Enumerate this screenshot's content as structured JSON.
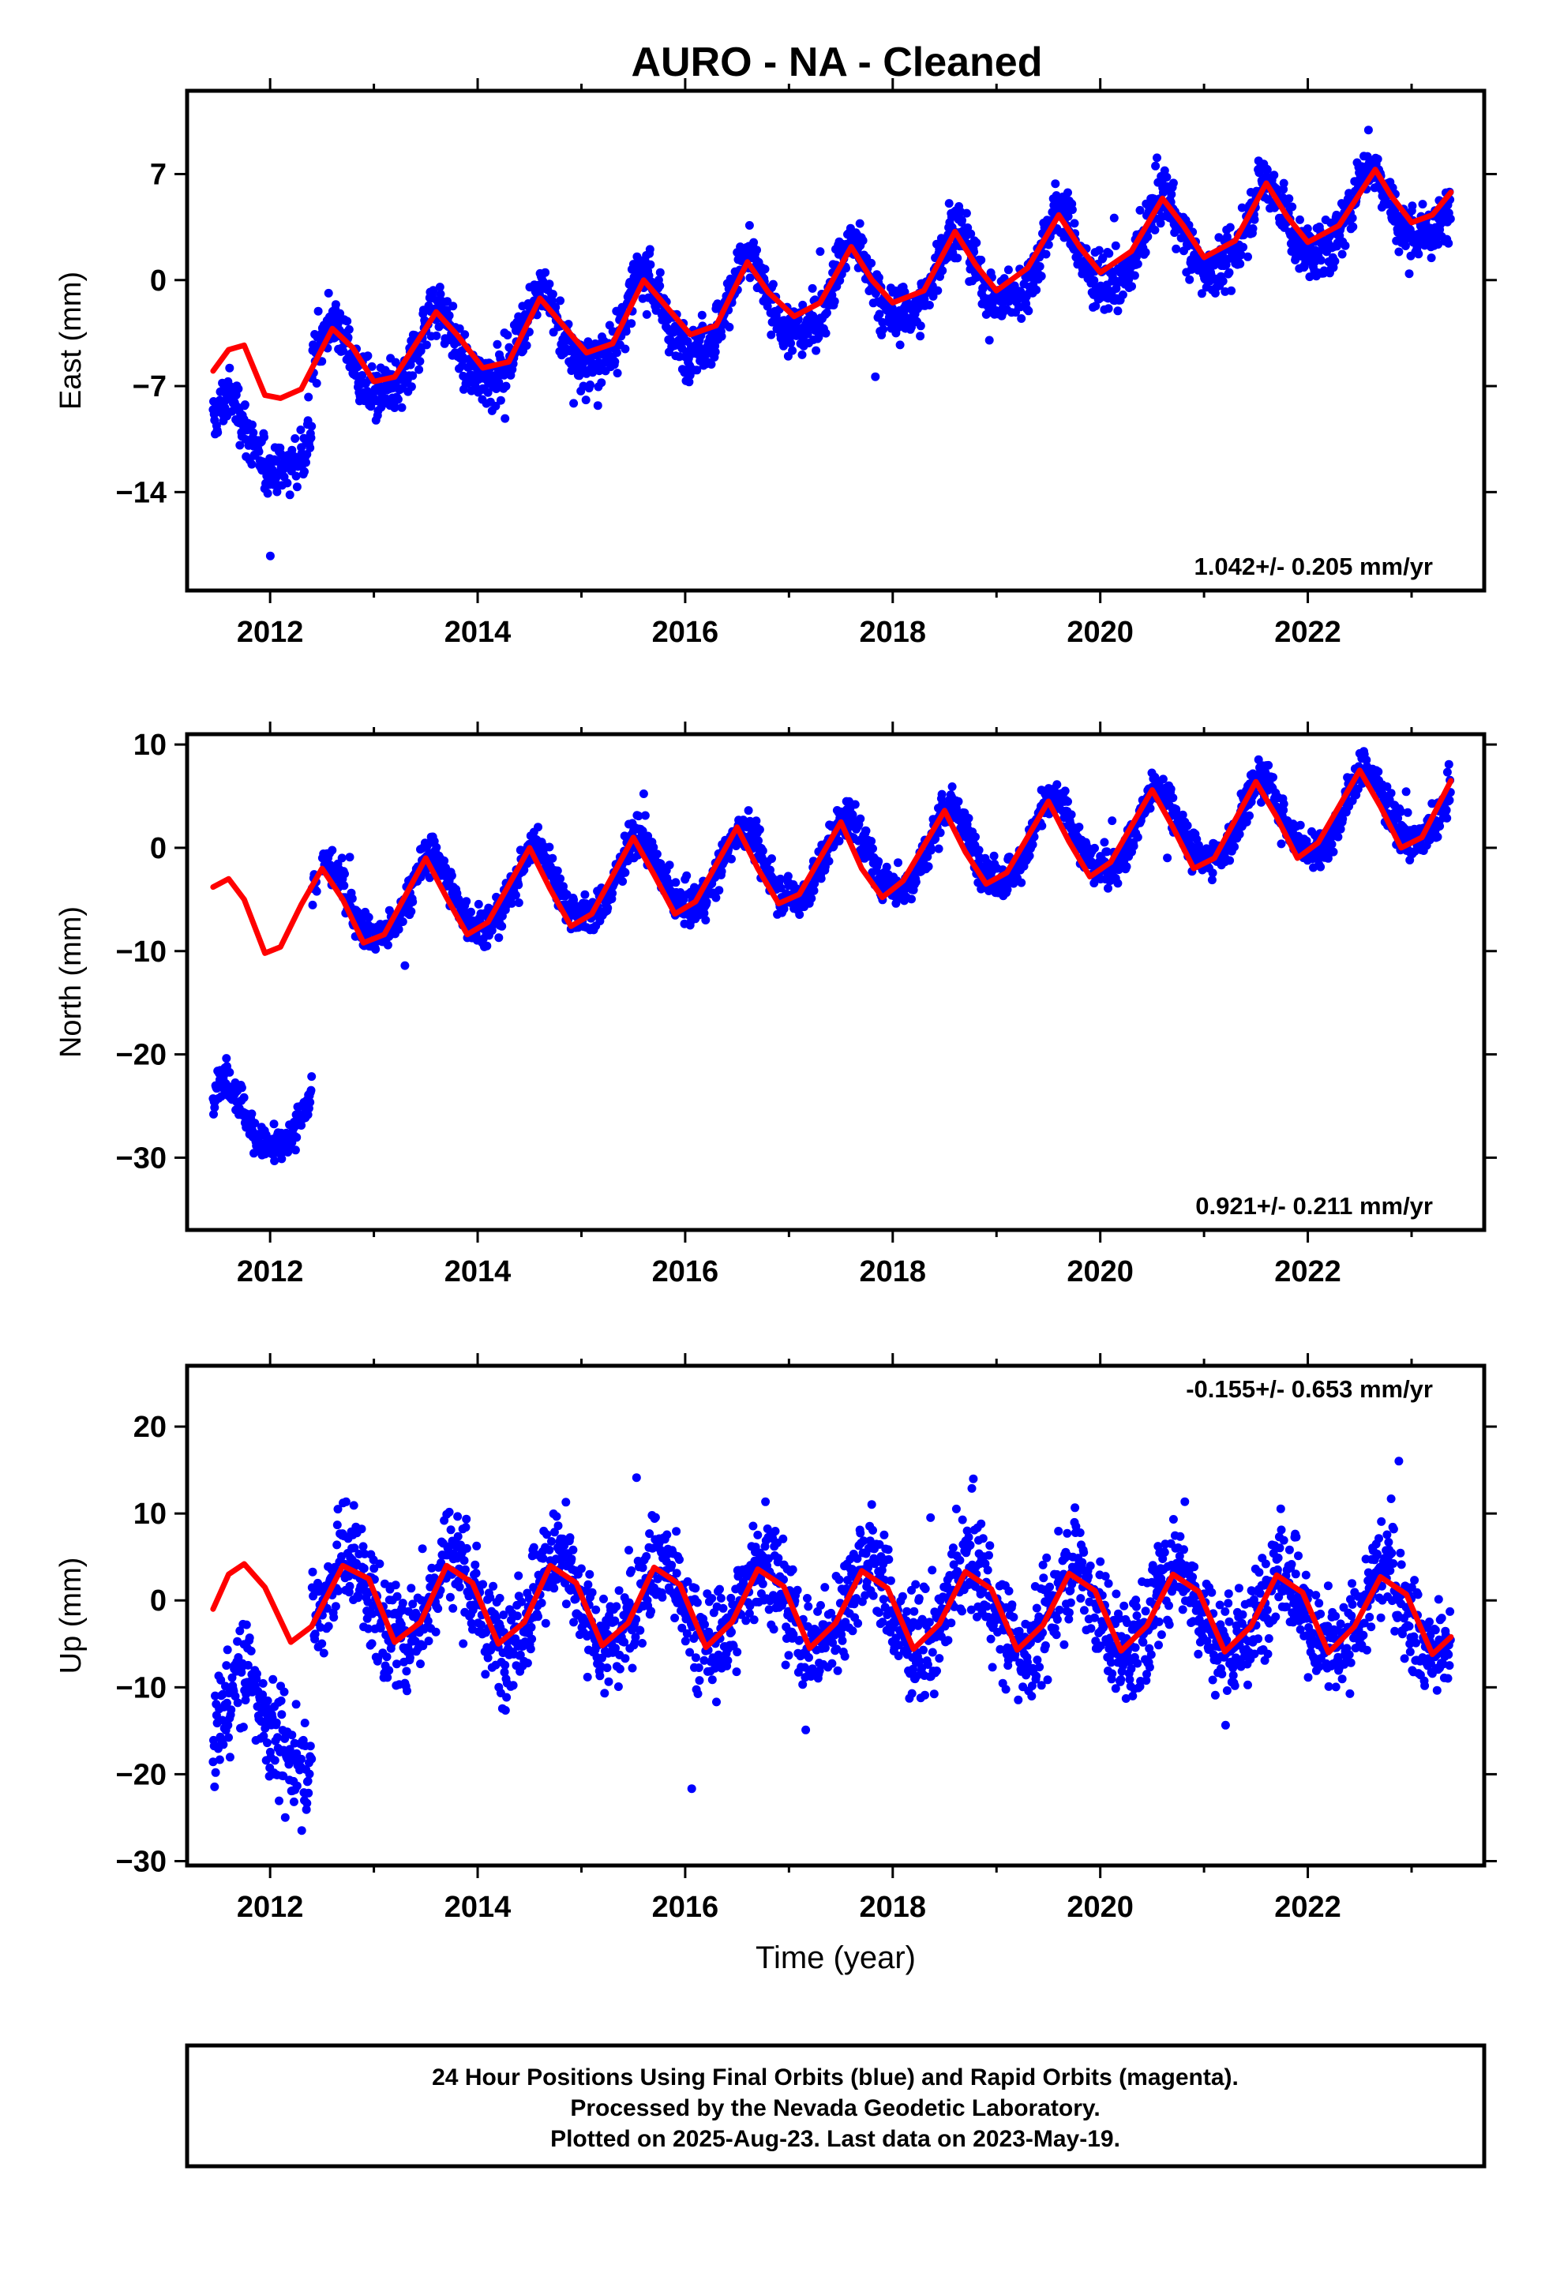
{
  "title": "AURO  - NA - Cleaned",
  "chart_data": [
    {
      "type": "scatter",
      "ylabel": "East (mm)",
      "xlabel": "",
      "xlim": [
        2011.2,
        2023.7
      ],
      "ylim": [
        -20.5,
        12.5
      ],
      "xticks": [
        2012,
        2014,
        2016,
        2018,
        2020,
        2022
      ],
      "yticks": [
        7,
        0,
        -7,
        -14
      ],
      "ytick_labels": [
        "7",
        "0",
        "−7",
        "−14"
      ],
      "rate_text": "1.042+/- 0.205 mm/yr",
      "rate_position": "bottom-right",
      "data_range": [
        2011.45,
        2023.38
      ],
      "series": [
        {
          "name": "Final Orbits (blue)",
          "color": "#0000ff",
          "style": "points",
          "model": {
            "offset": -10.5,
            "offset_after_2012": -6.6,
            "slope": 1.042,
            "annual_amp": 2.6,
            "annual_peak": 0.6,
            "semi_amp": 0.6,
            "noise": 1.25
          }
        },
        {
          "name": "model fit",
          "color": "#ff0000",
          "style": "line",
          "knots": [
            [
              2011.45,
              -6
            ],
            [
              2011.6,
              -4.6
            ],
            [
              2011.75,
              -4.3
            ],
            [
              2011.95,
              -7.6
            ],
            [
              2012.1,
              -7.8
            ],
            [
              2012.3,
              -7.2
            ],
            [
              2012.6,
              -3.2
            ],
            [
              2012.8,
              -4.5
            ],
            [
              2013.0,
              -6.7
            ],
            [
              2013.2,
              -6.4
            ],
            [
              2013.6,
              -2.1
            ],
            [
              2013.8,
              -3.6
            ],
            [
              2014.05,
              -5.8
            ],
            [
              2014.3,
              -5.4
            ],
            [
              2014.6,
              -1.2
            ],
            [
              2014.8,
              -2.8
            ],
            [
              2015.05,
              -4.8
            ],
            [
              2015.3,
              -4.2
            ],
            [
              2015.6,
              0
            ],
            [
              2015.8,
              -1.6
            ],
            [
              2016.05,
              -3.6
            ],
            [
              2016.3,
              -3.0
            ],
            [
              2016.6,
              1.2
            ],
            [
              2016.8,
              -0.8
            ],
            [
              2017.05,
              -2.4
            ],
            [
              2017.3,
              -1.5
            ],
            [
              2017.6,
              2.2
            ],
            [
              2017.8,
              0
            ],
            [
              2018.0,
              -1.5
            ],
            [
              2018.3,
              -0.7
            ],
            [
              2018.6,
              3.2
            ],
            [
              2018.8,
              1.0
            ],
            [
              2019.0,
              -0.7
            ],
            [
              2019.3,
              0.8
            ],
            [
              2019.6,
              4.3
            ],
            [
              2019.8,
              2.2
            ],
            [
              2020.0,
              0.5
            ],
            [
              2020.3,
              1.9
            ],
            [
              2020.6,
              5.4
            ],
            [
              2020.8,
              3.6
            ],
            [
              2021.0,
              1.5
            ],
            [
              2021.3,
              2.6
            ],
            [
              2021.6,
              6.4
            ],
            [
              2021.8,
              4.2
            ],
            [
              2022.0,
              2.5
            ],
            [
              2022.3,
              3.6
            ],
            [
              2022.65,
              7.3
            ],
            [
              2022.8,
              5.6
            ],
            [
              2023.0,
              3.8
            ],
            [
              2023.2,
              4.3
            ],
            [
              2023.38,
              5.8
            ]
          ]
        }
      ]
    },
    {
      "type": "scatter",
      "ylabel": "North (mm)",
      "xlabel": "",
      "xlim": [
        2011.2,
        2023.7
      ],
      "ylim": [
        -37,
        11
      ],
      "xticks": [
        2012,
        2014,
        2016,
        2018,
        2020,
        2022
      ],
      "yticks": [
        10,
        0,
        -10,
        -20,
        -30
      ],
      "ytick_labels": [
        "10",
        "0",
        "−10",
        "−20",
        "−30"
      ],
      "rate_text": "0.921+/- 0.211 mm/yr",
      "rate_position": "bottom-right",
      "data_range": [
        2011.45,
        2023.38
      ],
      "series": [
        {
          "name": "Final Orbits (blue)",
          "color": "#0000ff",
          "style": "points",
          "model": {
            "offset": -26.0,
            "offset_after_2012": -6.3,
            "slope": 0.921,
            "annual_amp": 3.6,
            "annual_peak": 0.55,
            "semi_amp": 0.5,
            "noise": 1.3
          }
        },
        {
          "name": "model fit",
          "color": "#ff0000",
          "style": "line",
          "knots": [
            [
              2011.45,
              -3.8
            ],
            [
              2011.6,
              -3.0
            ],
            [
              2011.75,
              -5.0
            ],
            [
              2011.95,
              -10.2
            ],
            [
              2012.1,
              -9.6
            ],
            [
              2012.3,
              -5.5
            ],
            [
              2012.5,
              -2.0
            ],
            [
              2012.7,
              -5.0
            ],
            [
              2012.9,
              -9.2
            ],
            [
              2013.1,
              -8.4
            ],
            [
              2013.5,
              -1.0
            ],
            [
              2013.7,
              -4.8
            ],
            [
              2013.9,
              -8.4
            ],
            [
              2014.1,
              -7.2
            ],
            [
              2014.5,
              0
            ],
            [
              2014.7,
              -4.0
            ],
            [
              2014.9,
              -7.6
            ],
            [
              2015.1,
              -6.4
            ],
            [
              2015.5,
              1.0
            ],
            [
              2015.7,
              -2.6
            ],
            [
              2015.9,
              -6.4
            ],
            [
              2016.1,
              -5.2
            ],
            [
              2016.5,
              2.0
            ],
            [
              2016.7,
              -2.0
            ],
            [
              2016.9,
              -5.4
            ],
            [
              2017.1,
              -4.5
            ],
            [
              2017.5,
              2.5
            ],
            [
              2017.7,
              -2.0
            ],
            [
              2017.9,
              -4.8
            ],
            [
              2018.1,
              -3.2
            ],
            [
              2018.5,
              3.6
            ],
            [
              2018.7,
              -0.4
            ],
            [
              2018.9,
              -3.5
            ],
            [
              2019.1,
              -2.4
            ],
            [
              2019.5,
              4.5
            ],
            [
              2019.7,
              0.6
            ],
            [
              2019.9,
              -2.8
            ],
            [
              2020.1,
              -1.4
            ],
            [
              2020.5,
              5.6
            ],
            [
              2020.7,
              2.0
            ],
            [
              2020.9,
              -2.0
            ],
            [
              2021.1,
              -1.0
            ],
            [
              2021.5,
              6.4
            ],
            [
              2021.7,
              3.0
            ],
            [
              2021.9,
              -1.0
            ],
            [
              2022.1,
              0.5
            ],
            [
              2022.5,
              7.5
            ],
            [
              2022.7,
              4.0
            ],
            [
              2022.9,
              0
            ],
            [
              2023.1,
              1.0
            ],
            [
              2023.38,
              6.5
            ]
          ]
        }
      ]
    },
    {
      "type": "scatter",
      "ylabel": "Up (mm)",
      "xlabel": "Time (year)",
      "xlim": [
        2011.2,
        2023.7
      ],
      "ylim": [
        -30.5,
        27
      ],
      "xticks": [
        2012,
        2014,
        2016,
        2018,
        2020,
        2022
      ],
      "yticks": [
        20,
        10,
        0,
        -10,
        -20,
        -30
      ],
      "ytick_labels": [
        "20",
        "10",
        "0",
        "−10",
        "−20",
        "−30"
      ],
      "rate_text": "-0.155+/- 0.653 mm/yr",
      "rate_position": "top-right",
      "data_range": [
        2011.45,
        2023.38
      ],
      "series": [
        {
          "name": "Final Orbits (blue)",
          "color": "#0000ff",
          "style": "points",
          "model": {
            "offset": -14.0,
            "offset_after_2012": 0.0,
            "slope": -0.155,
            "annual_amp": 5.0,
            "annual_peak": 0.75,
            "semi_amp": 0.6,
            "noise": 4.2
          }
        },
        {
          "name": "model fit",
          "color": "#ff0000",
          "style": "line",
          "knots": [
            [
              2011.45,
              -1.0
            ],
            [
              2011.6,
              3.0
            ],
            [
              2011.75,
              4.2
            ],
            [
              2011.95,
              1.5
            ],
            [
              2012.2,
              -4.8
            ],
            [
              2012.4,
              -3.0
            ],
            [
              2012.7,
              4.0
            ],
            [
              2012.95,
              2.5
            ],
            [
              2013.2,
              -4.8
            ],
            [
              2013.45,
              -2.5
            ],
            [
              2013.7,
              4.0
            ],
            [
              2013.95,
              2.0
            ],
            [
              2014.2,
              -5.0
            ],
            [
              2014.45,
              -2.5
            ],
            [
              2014.7,
              4.0
            ],
            [
              2014.95,
              2.0
            ],
            [
              2015.2,
              -5.2
            ],
            [
              2015.45,
              -2.6
            ],
            [
              2015.7,
              3.8
            ],
            [
              2015.95,
              1.8
            ],
            [
              2016.2,
              -5.4
            ],
            [
              2016.45,
              -2.5
            ],
            [
              2016.7,
              3.6
            ],
            [
              2016.95,
              1.6
            ],
            [
              2017.2,
              -5.5
            ],
            [
              2017.45,
              -2.6
            ],
            [
              2017.7,
              3.4
            ],
            [
              2017.95,
              1.4
            ],
            [
              2018.2,
              -5.6
            ],
            [
              2018.45,
              -2.7
            ],
            [
              2018.7,
              3.3
            ],
            [
              2018.95,
              1.3
            ],
            [
              2019.2,
              -5.7
            ],
            [
              2019.45,
              -2.8
            ],
            [
              2019.7,
              3.1
            ],
            [
              2019.95,
              1.1
            ],
            [
              2020.2,
              -5.8
            ],
            [
              2020.45,
              -2.9
            ],
            [
              2020.7,
              3.0
            ],
            [
              2020.95,
              1.0
            ],
            [
              2021.2,
              -5.9
            ],
            [
              2021.45,
              -3.0
            ],
            [
              2021.7,
              2.9
            ],
            [
              2021.95,
              0.9
            ],
            [
              2022.2,
              -6.0
            ],
            [
              2022.45,
              -3.0
            ],
            [
              2022.7,
              2.7
            ],
            [
              2022.95,
              0.7
            ],
            [
              2023.2,
              -6.2
            ],
            [
              2023.38,
              -4.2
            ]
          ]
        }
      ]
    }
  ],
  "footer": {
    "line1": "24 Hour Positions Using Final Orbits (blue) and Rapid Orbits (magenta).",
    "line2": "Processed by the Nevada Geodetic Laboratory.",
    "line3": "Plotted on 2025-Aug-23. Last data on 2023-May-19."
  }
}
